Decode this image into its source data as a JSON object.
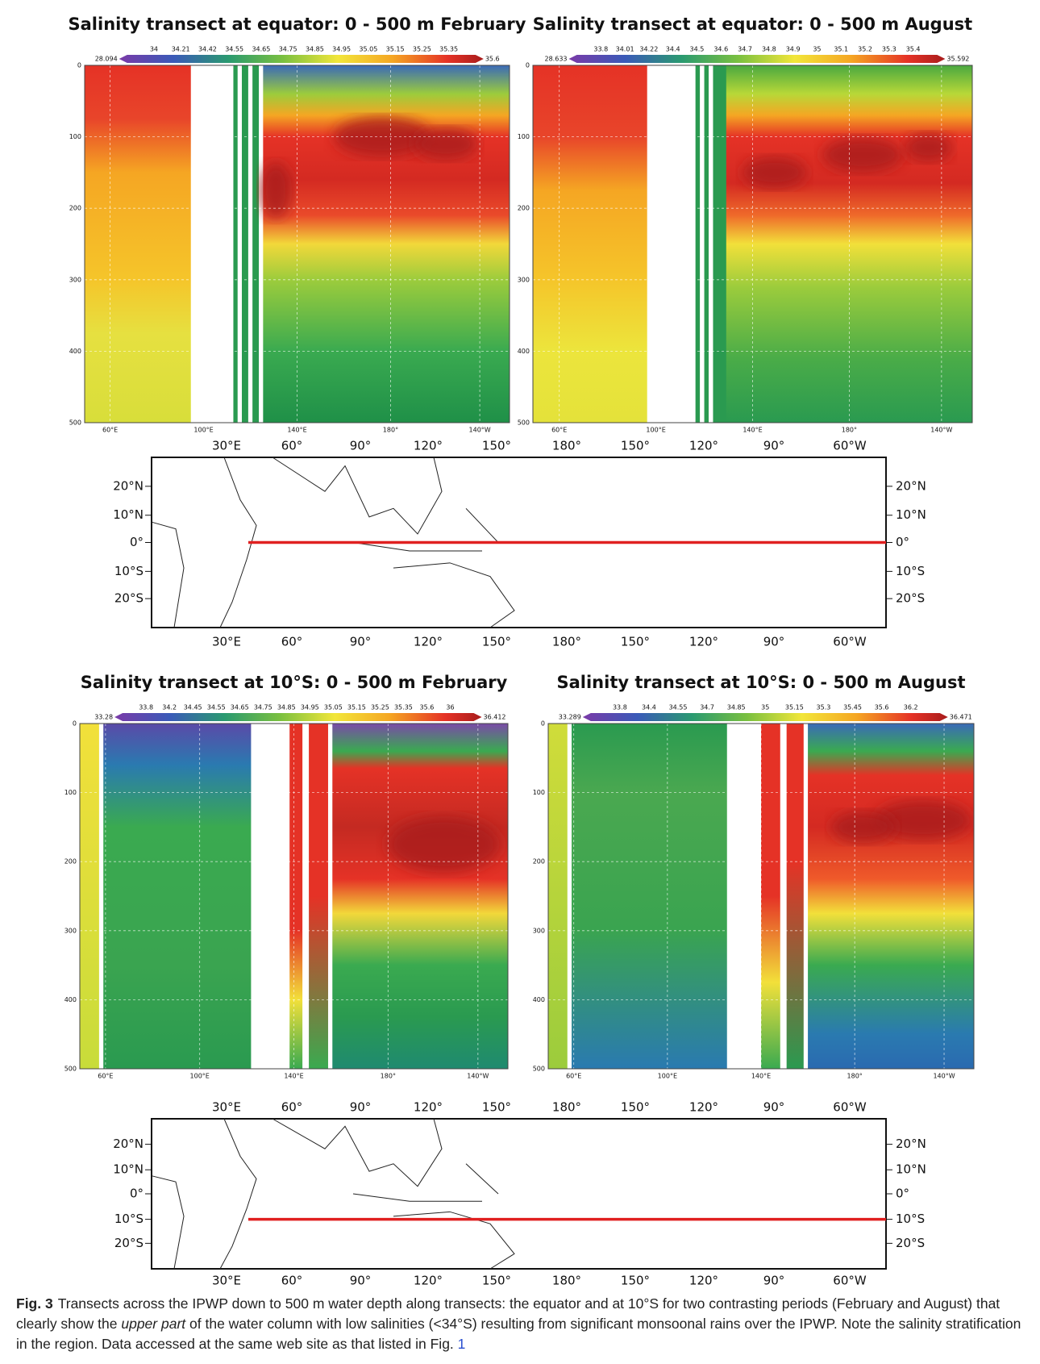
{
  "panels": [
    {
      "title": "Salinity transect at equator: 0 - 500 m  February",
      "colorbar": {
        "min": "28.094",
        "max": "35.6",
        "labels": [
          "34",
          "34.21",
          "34.42",
          "34.55",
          "34.65",
          "34.75",
          "34.85",
          "34.95",
          "35.05",
          "35.15",
          "35.25",
          "35.35"
        ]
      },
      "y_ticks": [
        "0",
        "100",
        "200",
        "300",
        "400",
        "500"
      ],
      "x_ticks": [
        "60°E",
        "100°E",
        "140°E",
        "180°",
        "140°W"
      ]
    },
    {
      "title": "Salinity transect at equator: 0 - 500 m August",
      "colorbar": {
        "min": "28.633",
        "max": "35.592",
        "labels": [
          "33.8",
          "34.01",
          "34.22",
          "34.4",
          "34.5",
          "34.6",
          "34.7",
          "34.8",
          "34.9",
          "35",
          "35.1",
          "35.2",
          "35.3",
          "35.4"
        ]
      },
      "y_ticks": [
        "0",
        "100",
        "200",
        "300",
        "400",
        "500"
      ],
      "x_ticks": [
        "60°E",
        "100°E",
        "140°E",
        "180°",
        "140°W"
      ]
    },
    {
      "title": "Salinity transect at 10°S: 0 - 500 m  February",
      "colorbar": {
        "min": "33.28",
        "max": "36.412",
        "labels": [
          "33.8",
          "34.2",
          "34.45",
          "34.55",
          "34.65",
          "34.75",
          "34.85",
          "34.95",
          "35.05",
          "35.15",
          "35.25",
          "35.35",
          "35.6",
          "36"
        ]
      },
      "y_ticks": [
        "0",
        "100",
        "200",
        "300",
        "400",
        "500"
      ],
      "x_ticks": [
        "60°E",
        "100°E",
        "140°E",
        "180°",
        "140°W"
      ]
    },
    {
      "title": "Salinity transect at 10°S: 0 - 500 m August",
      "colorbar": {
        "min": "33.289",
        "max": "36.471",
        "labels": [
          "33.8",
          "34.4",
          "34.55",
          "34.7",
          "34.85",
          "35",
          "35.15",
          "35.3",
          "35.45",
          "35.6",
          "36.2"
        ]
      },
      "y_ticks": [
        "0",
        "100",
        "200",
        "300",
        "400",
        "500"
      ],
      "x_ticks": [
        "60°E",
        "100°E",
        "140°E",
        "180°",
        "140°W"
      ]
    }
  ],
  "maps": [
    {
      "top_ticks": [
        "30°E",
        "60°",
        "90°",
        "120°",
        "150°",
        "180°",
        "150°",
        "120°",
        "90°",
        "60°W"
      ],
      "bottom_ticks": [
        "30°E",
        "60°",
        "90°",
        "120°",
        "150°",
        "180°",
        "150°",
        "120°",
        "90°",
        "60°W"
      ],
      "left_ticks": [
        "20°N",
        "10°N",
        "0°",
        "10°S",
        "20°S"
      ],
      "right_ticks": [
        "20°N",
        "10°N",
        "0°",
        "10°S",
        "20°S"
      ]
    },
    {
      "top_ticks": [
        "30°E",
        "60°",
        "90°",
        "120°",
        "150°",
        "180°",
        "150°",
        "120°",
        "90°",
        "60°W"
      ],
      "bottom_ticks": [
        "30°E",
        "60°",
        "90°",
        "120°",
        "150°",
        "180°",
        "150°",
        "120°",
        "90°",
        "60°W"
      ],
      "left_ticks": [
        "20°N",
        "10°N",
        "0°",
        "10°S",
        "20°S"
      ],
      "right_ticks": [
        "20°N",
        "10°N",
        "0°",
        "10°S",
        "20°S"
      ]
    }
  ],
  "caption": {
    "label": "Fig. 3",
    "text_1": "Transects across the IPWP down to 500 m water depth along transects: the equator and at 10°S for two contrasting periods (February and August) that clearly show the",
    "emphasis": "upper part",
    "text_2": "of the water column with low salinities (<34°S) resulting from significant monsoonal rains over the IPWP. Note the salinity stratification in the region. Data accessed at the same web site as that listed in Fig.",
    "link": "1"
  }
}
